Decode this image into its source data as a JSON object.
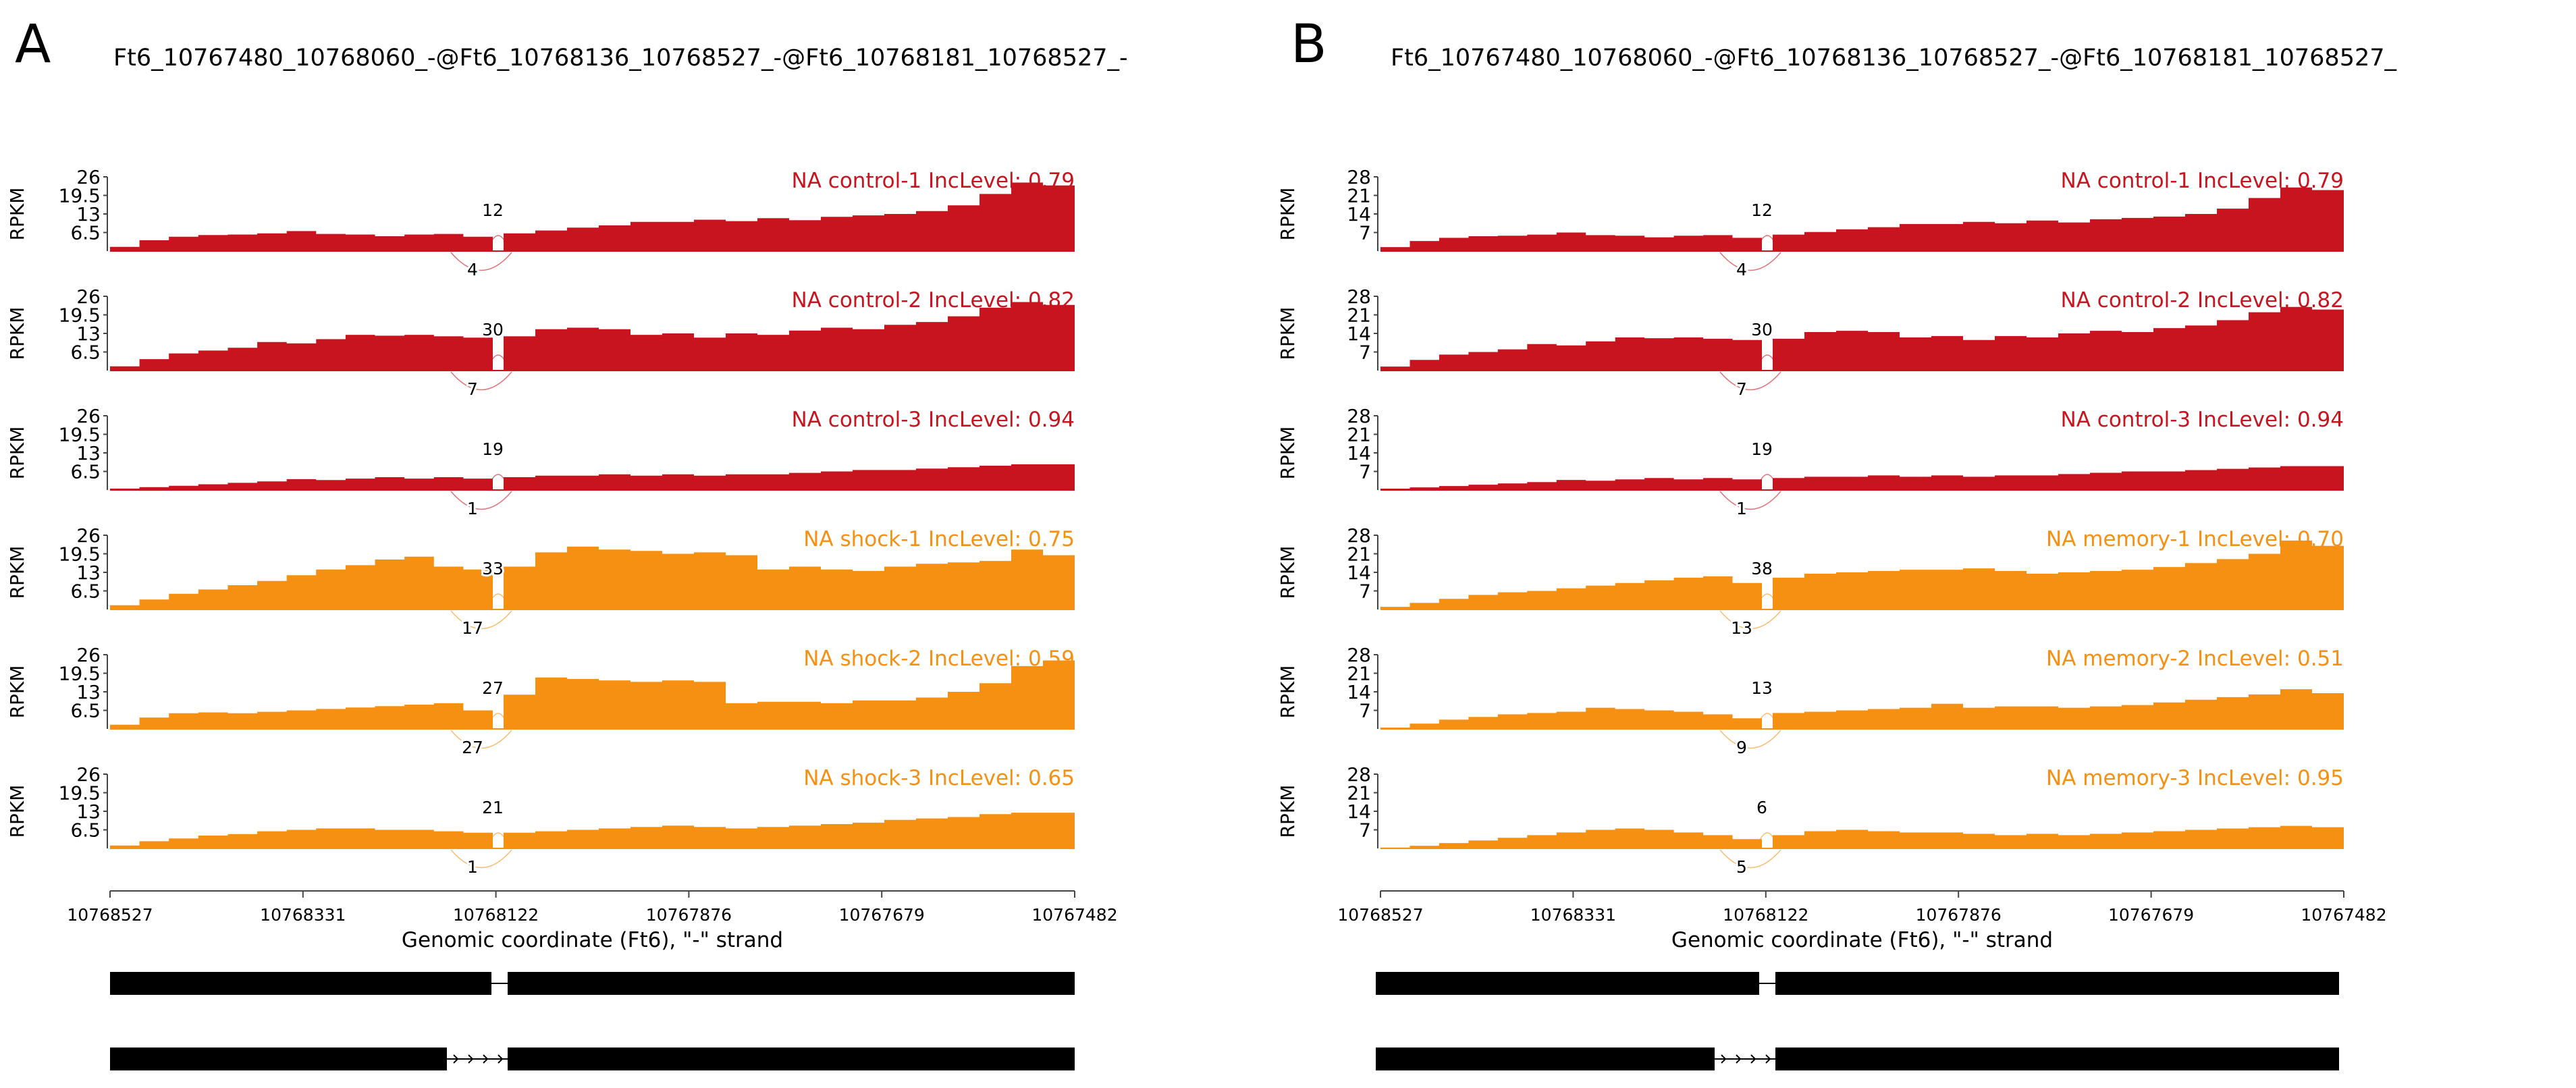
{
  "chart_data": [
    {
      "type": "area",
      "panel_letter": "A",
      "title": "Ft6_10767480_10768060_-@Ft6_10768136_10768527_-@Ft6_10768181_10768527_-",
      "ylabel": "RPKM",
      "xlabel": "Genomic coordinate (Ft6), \"-\" strand",
      "ylim": [
        0,
        26
      ],
      "yticks": [
        "6.5",
        "13",
        "19.5",
        "26"
      ],
      "xlim": [
        10768527,
        10767482
      ],
      "xticks": [
        "10768527",
        "10768331",
        "10768122",
        "10767876",
        "10767679",
        "10767482"
      ],
      "tracks": [
        {
          "label": "NA control-1 IncLevel: 0.79",
          "group": "control",
          "junction_top": "12",
          "junction_bottom": "4",
          "upstream": [
            1.5,
            3.8,
            5.0,
            5.6,
            5.8,
            6.2,
            7.0,
            6.0,
            5.8,
            5.2,
            5.8,
            6.0,
            5.0
          ],
          "downstream": [
            6.2,
            7.2,
            8.2,
            9.0,
            10.2,
            10.2,
            11.0,
            10.5,
            11.5,
            10.8,
            12.0,
            12.5,
            13.0,
            14.0,
            16.0,
            20.0,
            24.0,
            23.0
          ]
        },
        {
          "label": "NA control-2 IncLevel: 0.82",
          "group": "control",
          "junction_top": "30",
          "junction_bottom": "7",
          "upstream": [
            1.5,
            4.0,
            6.0,
            7.0,
            8.0,
            10.0,
            9.5,
            11.0,
            12.5,
            12.2,
            12.5,
            12.0,
            11.5
          ],
          "downstream": [
            12.0,
            14.5,
            15.0,
            14.5,
            12.5,
            13.0,
            11.5,
            13.0,
            12.5,
            14.0,
            15.0,
            14.5,
            16.0,
            17.0,
            19.0,
            22.0,
            24.0,
            23.0
          ]
        },
        {
          "label": "NA control-3 IncLevel: 0.94",
          "group": "control",
          "junction_top": "19",
          "junction_bottom": "1",
          "upstream": [
            0.5,
            1.0,
            1.5,
            2.0,
            2.5,
            3.0,
            3.8,
            3.5,
            4.0,
            4.5,
            4.0,
            4.5,
            4.0
          ],
          "downstream": [
            4.5,
            5.0,
            5.0,
            5.5,
            5.0,
            5.5,
            5.0,
            5.5,
            5.5,
            6.0,
            6.5,
            7.0,
            7.0,
            7.5,
            8.0,
            8.5,
            9.0,
            9.0
          ]
        },
        {
          "label": "NA shock-1 IncLevel: 0.75",
          "group": "other",
          "junction_top": "33",
          "junction_bottom": "17",
          "upstream": [
            1.5,
            3.5,
            5.5,
            7.0,
            8.5,
            10.0,
            12.0,
            14.0,
            15.5,
            17.5,
            18.5,
            15.0,
            14.0
          ],
          "downstream": [
            15.0,
            20.0,
            22.0,
            21.0,
            20.5,
            19.5,
            20.0,
            19.0,
            14.0,
            15.0,
            14.0,
            13.5,
            15.0,
            16.0,
            16.5,
            17.0,
            21.0,
            19.0
          ]
        },
        {
          "label": "NA shock-2 IncLevel: 0.59",
          "group": "other",
          "junction_top": "27",
          "junction_bottom": "27",
          "upstream": [
            1.5,
            4.0,
            5.5,
            5.8,
            5.5,
            6.0,
            6.5,
            7.0,
            7.5,
            8.0,
            8.5,
            9.0,
            6.5
          ],
          "downstream": [
            12.0,
            18.0,
            17.5,
            17.0,
            16.5,
            17.0,
            16.5,
            9.0,
            9.5,
            9.5,
            9.0,
            10.0,
            10.0,
            11.0,
            13.0,
            16.0,
            22.0,
            24.0
          ]
        },
        {
          "label": "NA shock-3 IncLevel: 0.65",
          "group": "other",
          "junction_top": "21",
          "junction_bottom": "1",
          "upstream": [
            1.0,
            2.5,
            3.5,
            4.5,
            5.0,
            6.0,
            6.5,
            7.0,
            7.0,
            6.5,
            6.5,
            6.0,
            5.5
          ],
          "downstream": [
            5.5,
            6.0,
            6.5,
            7.0,
            7.5,
            8.0,
            7.5,
            7.0,
            7.5,
            8.0,
            8.5,
            9.0,
            10.0,
            10.5,
            11.0,
            12.0,
            12.5,
            12.5
          ]
        }
      ],
      "isoforms": [
        "inclusion",
        "skipping"
      ]
    },
    {
      "type": "area",
      "panel_letter": "B",
      "title": "Ft6_10767480_10768060_-@Ft6_10768136_10768527_-@Ft6_10768181_10768527_",
      "ylabel": "RPKM",
      "xlabel": "Genomic coordinate (Ft6), \"-\" strand",
      "ylim": [
        0,
        28
      ],
      "yticks": [
        "7",
        "14",
        "21",
        "28"
      ],
      "xlim": [
        10768527,
        10767482
      ],
      "xticks": [
        "10768527",
        "10768331",
        "10768122",
        "10767876",
        "10767679",
        "10767482"
      ],
      "tracks": [
        {
          "label": "NA control-1 IncLevel: 0.79",
          "group": "control",
          "junction_top": "12",
          "junction_bottom": "4",
          "upstream": [
            1.5,
            3.8,
            5.0,
            5.6,
            5.8,
            6.2,
            7.0,
            6.0,
            5.8,
            5.2,
            5.8,
            6.0,
            5.0
          ],
          "downstream": [
            6.2,
            7.2,
            8.2,
            9.0,
            10.2,
            10.2,
            11.0,
            10.5,
            11.5,
            10.8,
            12.0,
            12.5,
            13.0,
            14.0,
            16.0,
            20.0,
            24.0,
            23.0
          ]
        },
        {
          "label": "NA control-2 IncLevel: 0.82",
          "group": "control",
          "junction_top": "30",
          "junction_bottom": "7",
          "upstream": [
            1.5,
            4.0,
            6.0,
            7.0,
            8.0,
            10.0,
            9.5,
            11.0,
            12.5,
            12.2,
            12.5,
            12.0,
            11.5
          ],
          "downstream": [
            12.0,
            14.5,
            15.0,
            14.5,
            12.5,
            13.0,
            11.5,
            13.0,
            12.5,
            14.0,
            15.0,
            14.5,
            16.0,
            17.0,
            19.0,
            22.0,
            24.0,
            23.0
          ]
        },
        {
          "label": "NA control-3 IncLevel: 0.94",
          "group": "control",
          "junction_top": "19",
          "junction_bottom": "1",
          "upstream": [
            0.5,
            1.0,
            1.5,
            2.0,
            2.5,
            3.0,
            3.8,
            3.5,
            4.0,
            4.5,
            4.0,
            4.5,
            4.0
          ],
          "downstream": [
            4.5,
            5.0,
            5.0,
            5.5,
            5.0,
            5.5,
            5.0,
            5.5,
            5.5,
            6.0,
            6.5,
            7.0,
            7.0,
            7.5,
            8.0,
            8.5,
            9.0,
            9.0
          ]
        },
        {
          "label": "NA memory-1 IncLevel: 0.70",
          "group": "other",
          "junction_top": "38",
          "junction_bottom": "13",
          "upstream": [
            1.0,
            2.5,
            4.0,
            5.5,
            6.5,
            7.0,
            8.0,
            9.0,
            10.0,
            11.0,
            12.0,
            12.5,
            10.0
          ],
          "downstream": [
            12.0,
            13.5,
            14.0,
            14.5,
            15.0,
            15.0,
            15.5,
            14.5,
            13.5,
            14.0,
            14.5,
            15.0,
            16.0,
            17.5,
            19.0,
            21.0,
            26.0,
            24.0
          ]
        },
        {
          "label": "NA memory-2 IncLevel: 0.51",
          "group": "other",
          "junction_top": "13",
          "junction_bottom": "9",
          "upstream": [
            0.5,
            2.0,
            3.5,
            4.5,
            5.5,
            6.0,
            6.5,
            8.0,
            7.5,
            7.0,
            6.5,
            5.5,
            4.0
          ],
          "downstream": [
            6.0,
            6.5,
            7.0,
            7.5,
            8.0,
            9.5,
            8.0,
            8.5,
            8.5,
            8.0,
            8.5,
            9.0,
            10.0,
            11.0,
            12.0,
            13.0,
            15.0,
            13.5
          ]
        },
        {
          "label": "NA memory-3 IncLevel: 0.95",
          "group": "other",
          "junction_top": "6",
          "junction_bottom": "5",
          "upstream": [
            0.3,
            1.0,
            2.0,
            3.0,
            4.0,
            5.0,
            6.0,
            7.0,
            7.5,
            7.0,
            6.0,
            5.0,
            3.5
          ],
          "downstream": [
            5.0,
            6.5,
            7.0,
            6.5,
            6.0,
            6.0,
            5.5,
            5.0,
            5.5,
            5.0,
            5.5,
            6.0,
            6.5,
            7.0,
            7.5,
            8.0,
            8.5,
            8.0
          ]
        }
      ],
      "isoforms": [
        "inclusion",
        "skipping"
      ]
    }
  ],
  "colors": {
    "control": "#c8141e",
    "other": "#f59012",
    "text": "#000000",
    "axis": "#444444"
  }
}
